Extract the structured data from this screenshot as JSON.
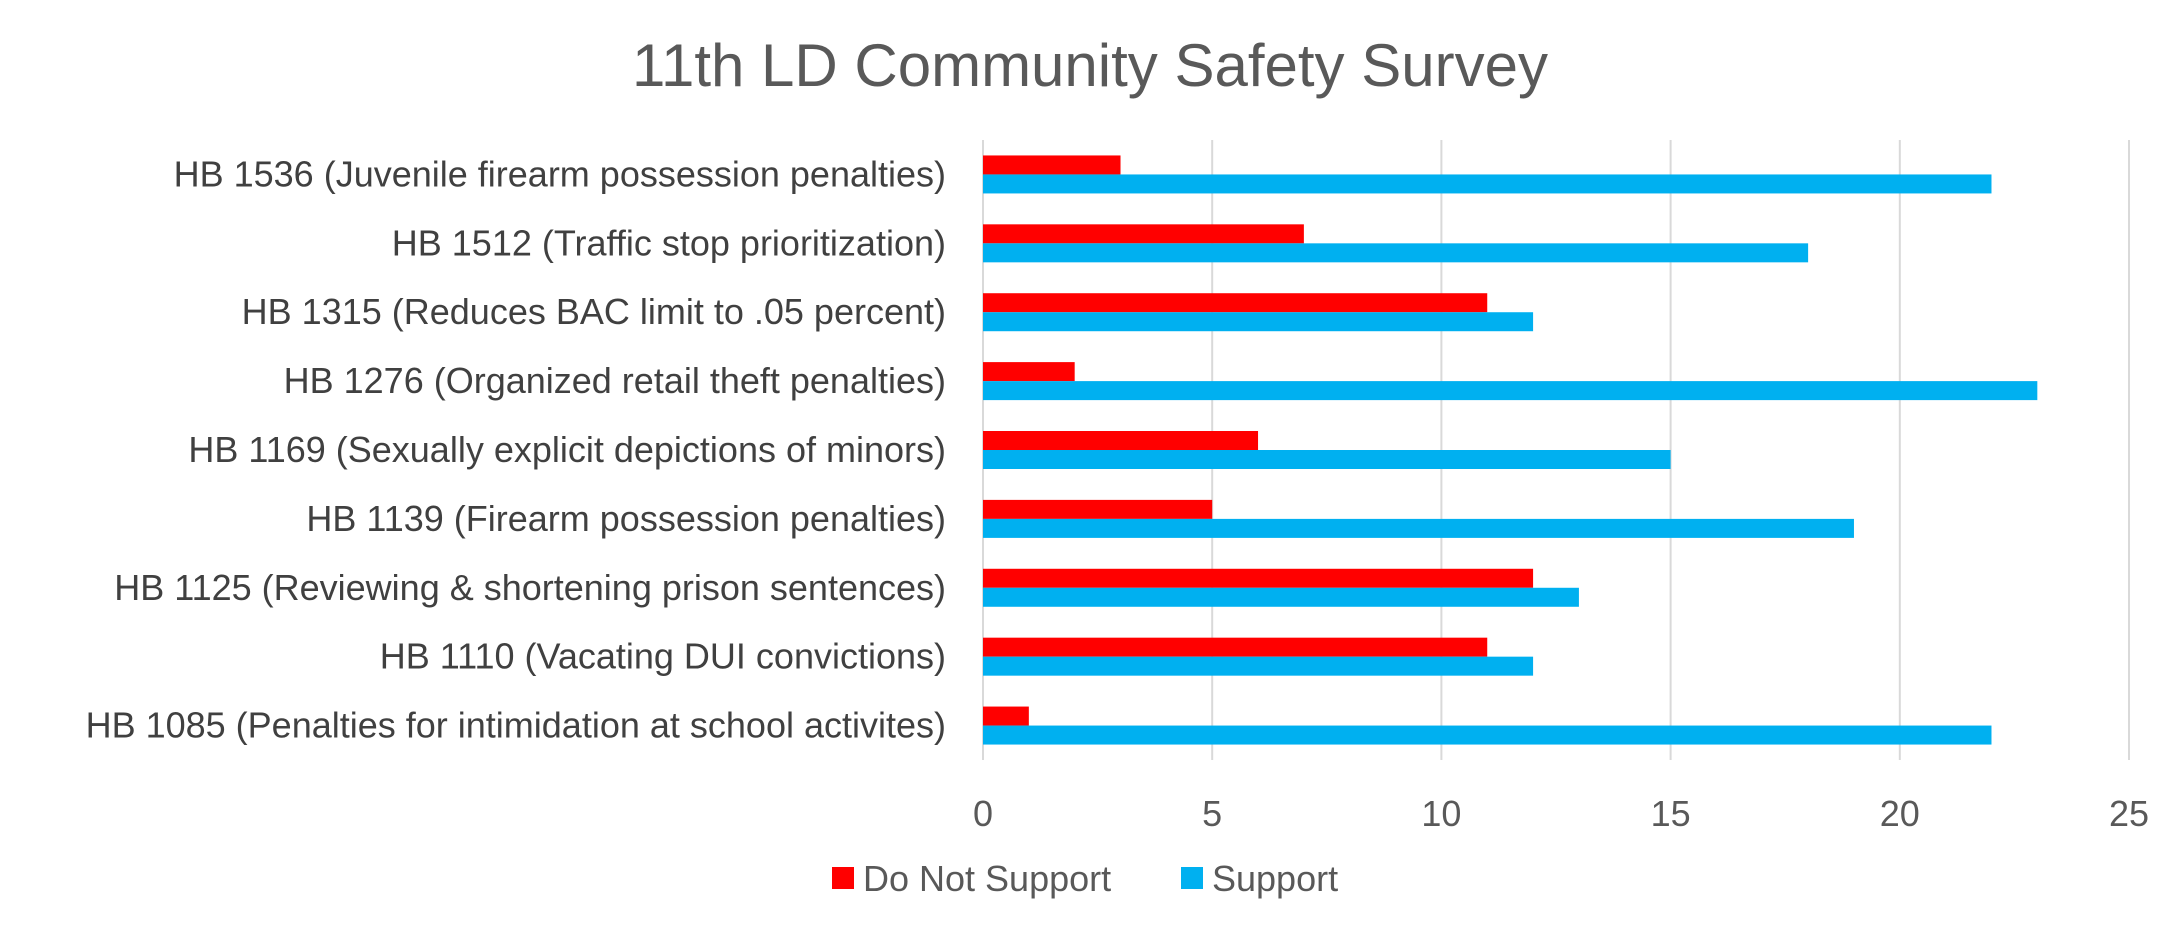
{
  "chart_data": {
    "type": "bar",
    "orientation": "horizontal",
    "title": "11th LD Community Safety Survey",
    "xlabel": "",
    "ylabel": "",
    "categories": [
      "HB 1536 (Juvenile firearm possession penalties)",
      "HB 1512 (Traffic stop prioritization)",
      "HB 1315 (Reduces BAC limit to .05 percent)",
      "HB 1276 (Organized retail theft penalties)",
      "HB 1169 (Sexually explicit depictions of minors)",
      "HB 1139 (Firearm possession penalties)",
      "HB 1125 (Reviewing & shortening prison sentences)",
      "HB 1110 (Vacating DUI convictions)",
      "HB 1085 (Penalties for intimidation at school activites)"
    ],
    "series": [
      {
        "name": "Do Not Support",
        "color": "#ff0000",
        "values": [
          3,
          7,
          11,
          2,
          6,
          5,
          12,
          11,
          1
        ]
      },
      {
        "name": "Support",
        "color": "#00b0f0",
        "values": [
          22,
          18,
          12,
          23,
          15,
          19,
          13,
          12,
          22
        ]
      }
    ],
    "xlim": [
      0,
      25
    ],
    "xticks": [
      "0",
      "5",
      "10",
      "15",
      "20",
      "25"
    ],
    "grid": true,
    "legend_position": "bottom"
  }
}
